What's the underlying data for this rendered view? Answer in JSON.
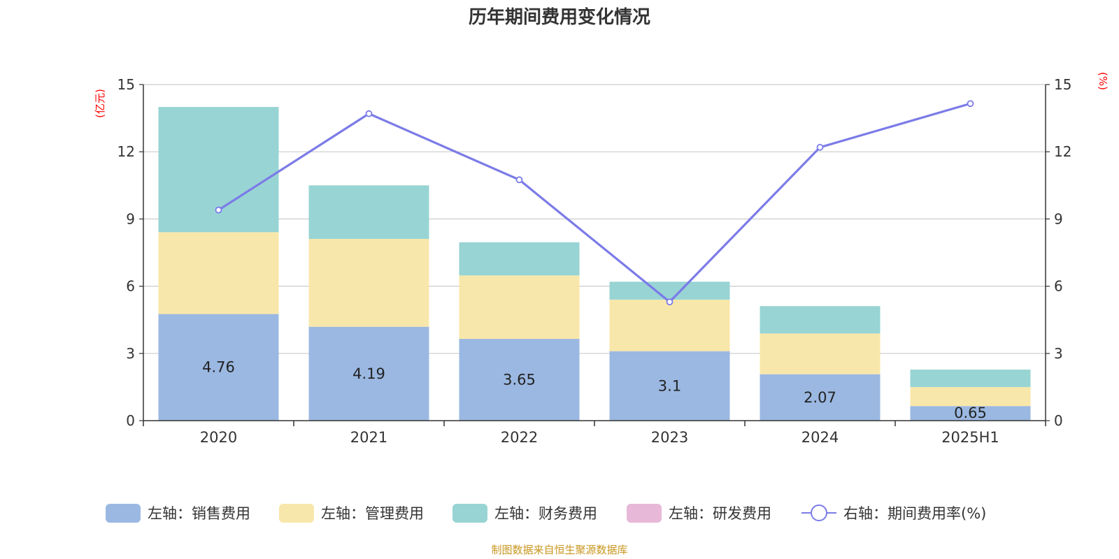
{
  "chart_data": {
    "type": "bar",
    "stacked": true,
    "title": "历年期间费用变化情况",
    "categories": [
      "2020",
      "2021",
      "2022",
      "2023",
      "2024",
      "2025H1"
    ],
    "y_left": {
      "unit": "(亿元)",
      "ylim": [
        0,
        15
      ],
      "ticks": [
        "0",
        "3",
        "6",
        "9",
        "12",
        "15"
      ]
    },
    "y_right": {
      "unit": "(%)",
      "ylim": [
        0,
        15
      ],
      "ticks": [
        "0",
        "3",
        "6",
        "9",
        "12",
        "15"
      ]
    },
    "grid": true,
    "legend_position": "bottom",
    "series": [
      {
        "name": "左轴：销售费用",
        "type": "bar",
        "axis": "left",
        "color": "#9bb8e2",
        "values": [
          4.76,
          4.19,
          3.65,
          3.1,
          2.07,
          0.65
        ],
        "labels": [
          "4.76",
          "4.19",
          "3.65",
          "3.1",
          "2.07",
          "0.65"
        ]
      },
      {
        "name": "左轴：管理费用",
        "type": "bar",
        "axis": "left",
        "color": "#f8e7aa",
        "values": [
          3.65,
          3.92,
          2.83,
          2.3,
          1.82,
          0.85
        ]
      },
      {
        "name": "左轴：财务费用",
        "type": "bar",
        "axis": "left",
        "color": "#98d4d4",
        "values": [
          5.59,
          2.39,
          1.48,
          0.8,
          1.22,
          0.78
        ]
      },
      {
        "name": "左轴：研发费用",
        "type": "bar",
        "axis": "left",
        "color": "#e8b8d8",
        "values": [
          0,
          0,
          0,
          0,
          0,
          0
        ]
      },
      {
        "name": "右轴：期间费用率(%)",
        "type": "line",
        "axis": "right",
        "color": "#7b7be8",
        "values": [
          9.4,
          13.7,
          10.75,
          5.3,
          12.2,
          14.15
        ]
      }
    ],
    "source": "制图数据来自恒生聚源数据库"
  }
}
